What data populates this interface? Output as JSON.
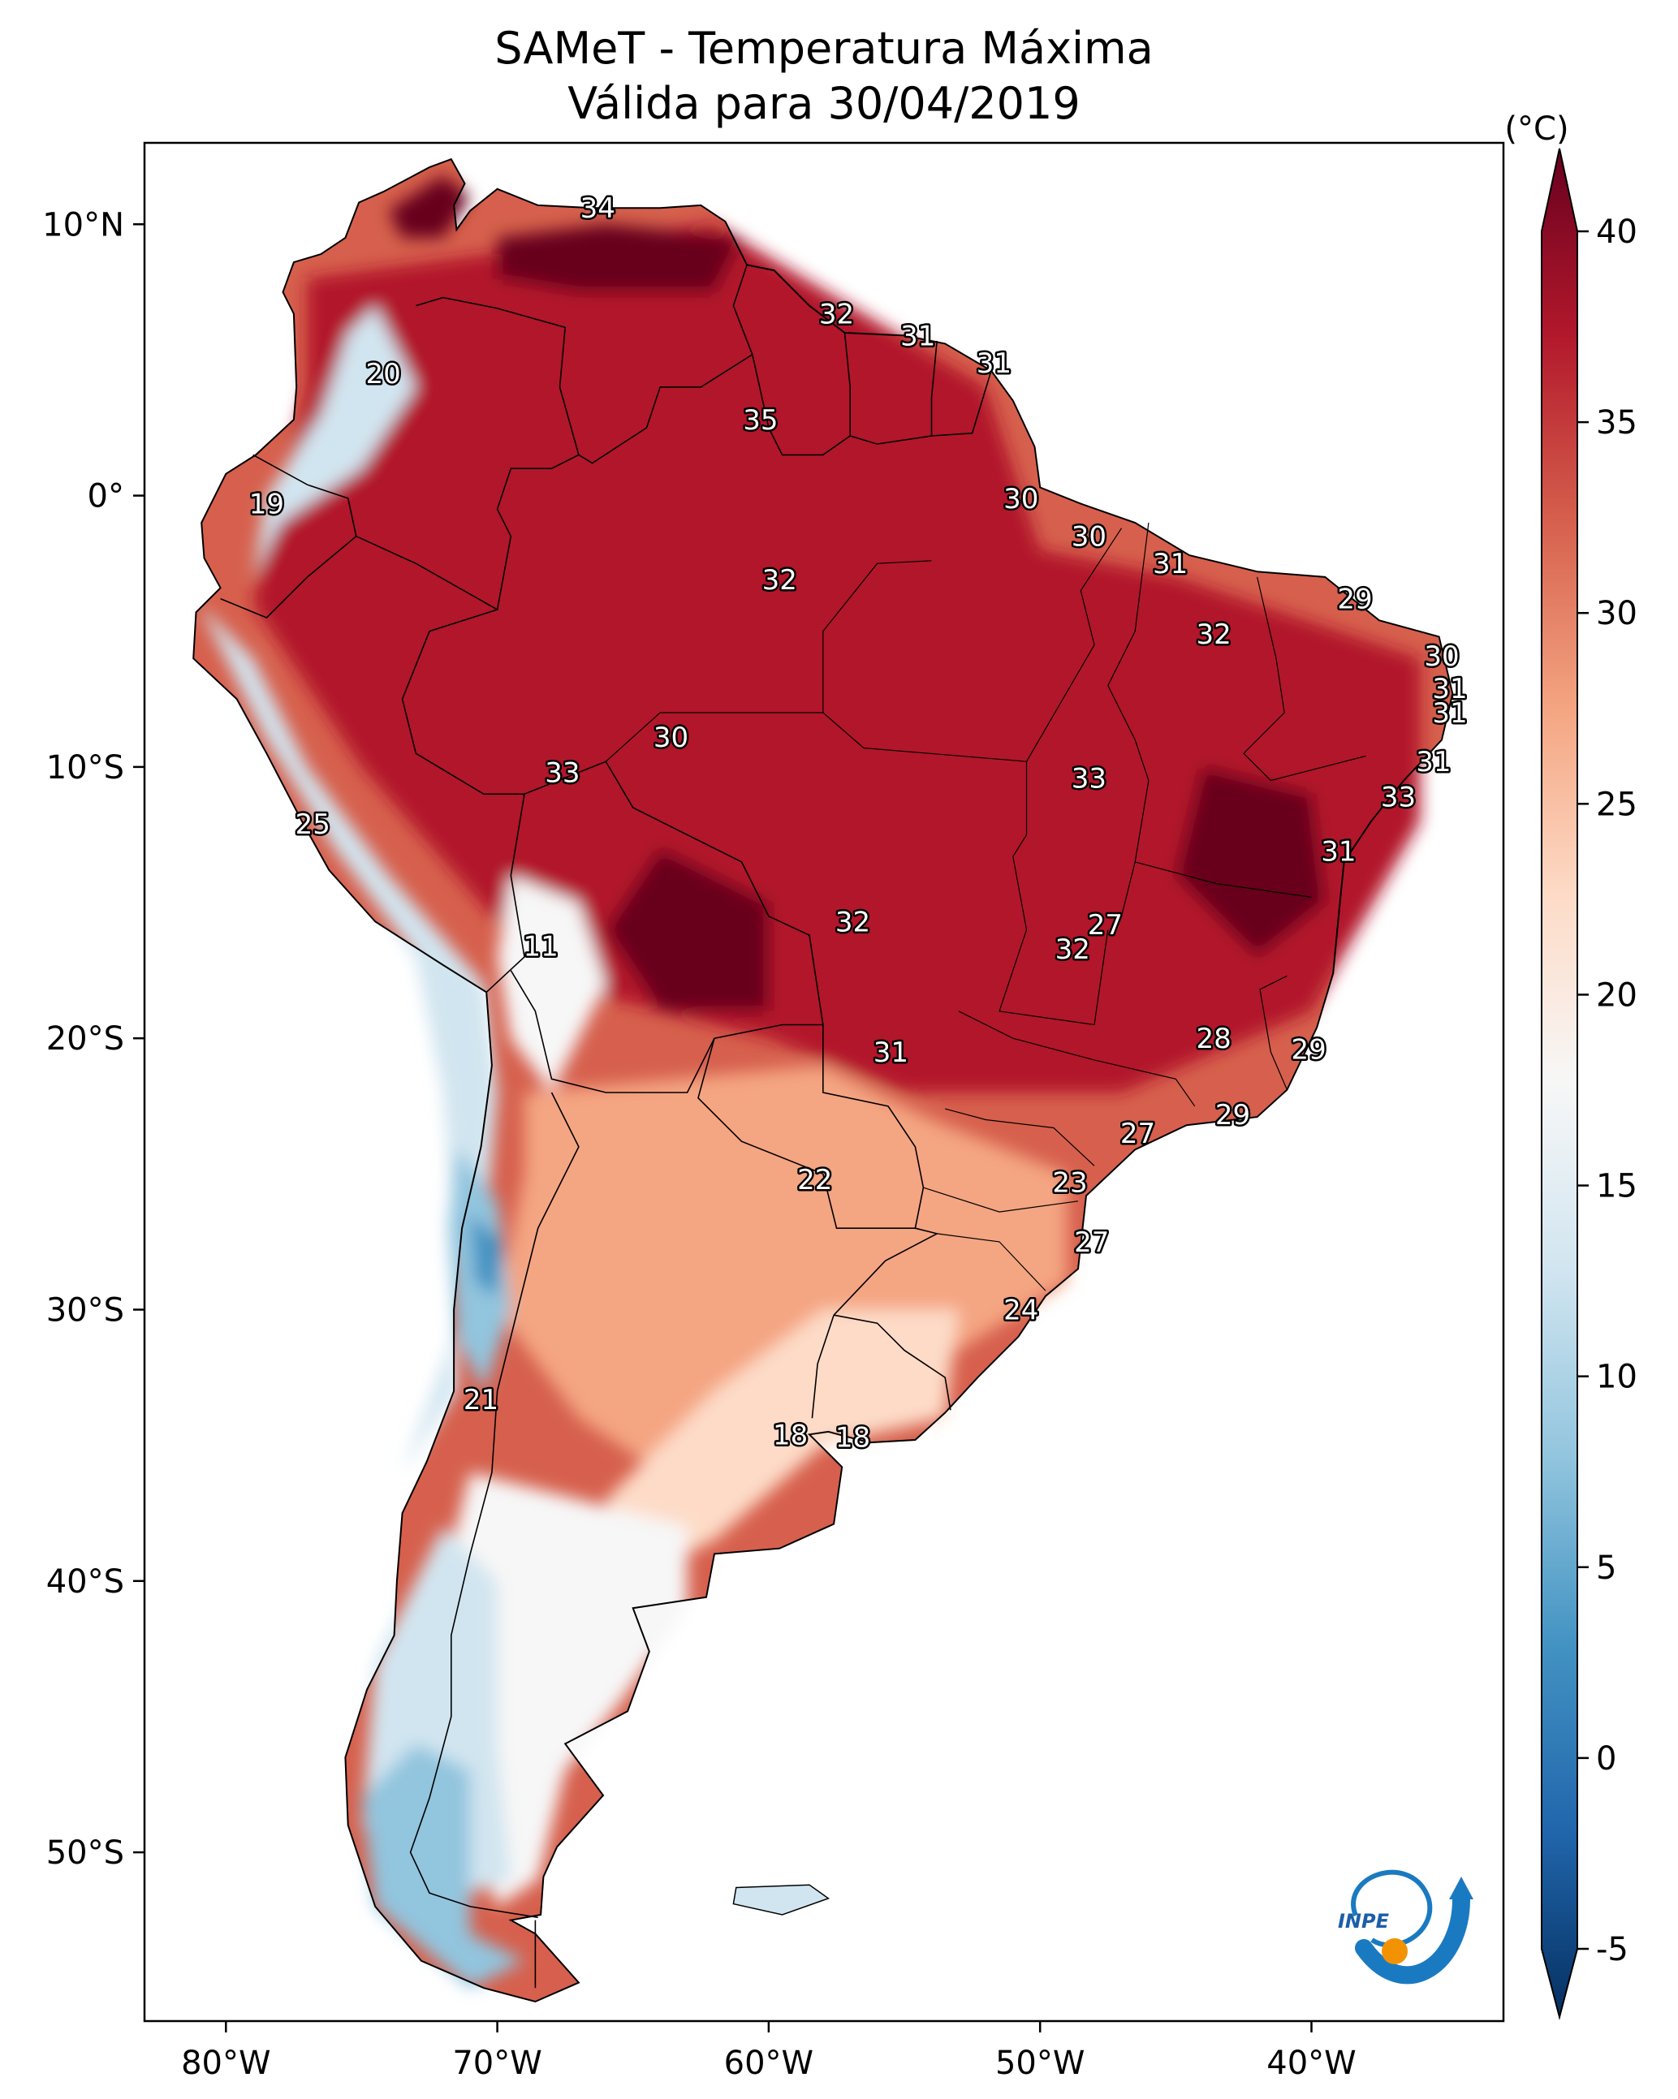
{
  "title": {
    "line1": "SAMeT - Temperatura Máxima",
    "line2": "Válida para 30/04/2019"
  },
  "map": {
    "lon_ticks": [
      "80°W",
      "70°W",
      "60°W",
      "50°W",
      "40°W"
    ],
    "lat_ticks": [
      "10°N",
      "0°",
      "10°S",
      "20°S",
      "30°S",
      "40°S",
      "50°S"
    ],
    "labels": [
      {
        "text": "34",
        "lon": -66.3,
        "lat": 10.6
      },
      {
        "text": "32",
        "lon": -57.5,
        "lat": 6.7
      },
      {
        "text": "31",
        "lon": -54.5,
        "lat": 5.9
      },
      {
        "text": "31",
        "lon": -51.7,
        "lat": 4.9
      },
      {
        "text": "20",
        "lon": -74.2,
        "lat": 4.5
      },
      {
        "text": "35",
        "lon": -60.3,
        "lat": 2.8
      },
      {
        "text": "19",
        "lon": -78.5,
        "lat": -0.3
      },
      {
        "text": "30",
        "lon": -50.7,
        "lat": -0.1
      },
      {
        "text": "30",
        "lon": -48.2,
        "lat": -1.5
      },
      {
        "text": "31",
        "lon": -45.2,
        "lat": -2.5
      },
      {
        "text": "32",
        "lon": -59.6,
        "lat": -3.1
      },
      {
        "text": "29",
        "lon": -38.4,
        "lat": -3.8
      },
      {
        "text": "32",
        "lon": -43.6,
        "lat": -5.1
      },
      {
        "text": "30",
        "lon": -35.2,
        "lat": -5.9
      },
      {
        "text": "31",
        "lon": -34.9,
        "lat": -7.1
      },
      {
        "text": "31",
        "lon": -34.9,
        "lat": -8.0
      },
      {
        "text": "30",
        "lon": -63.6,
        "lat": -8.9
      },
      {
        "text": "31",
        "lon": -35.5,
        "lat": -9.8
      },
      {
        "text": "33",
        "lon": -67.6,
        "lat": -10.2
      },
      {
        "text": "33",
        "lon": -48.2,
        "lat": -10.4
      },
      {
        "text": "33",
        "lon": -36.8,
        "lat": -11.1
      },
      {
        "text": "25",
        "lon": -76.8,
        "lat": -12.1
      },
      {
        "text": "31",
        "lon": -39.0,
        "lat": -13.1
      },
      {
        "text": "32",
        "lon": -56.9,
        "lat": -15.7
      },
      {
        "text": "27",
        "lon": -47.6,
        "lat": -15.8
      },
      {
        "text": "11",
        "lon": -68.4,
        "lat": -16.6
      },
      {
        "text": "32",
        "lon": -48.8,
        "lat": -16.7
      },
      {
        "text": "28",
        "lon": -43.6,
        "lat": -20.0
      },
      {
        "text": "29",
        "lon": -40.1,
        "lat": -20.4
      },
      {
        "text": "31",
        "lon": -55.5,
        "lat": -20.5
      },
      {
        "text": "29",
        "lon": -42.9,
        "lat": -22.8
      },
      {
        "text": "27",
        "lon": -46.4,
        "lat": -23.5
      },
      {
        "text": "22",
        "lon": -58.3,
        "lat": -25.2
      },
      {
        "text": "23",
        "lon": -48.9,
        "lat": -25.3
      },
      {
        "text": "27",
        "lon": -48.1,
        "lat": -27.5
      },
      {
        "text": "24",
        "lon": -50.7,
        "lat": -30.0
      },
      {
        "text": "21",
        "lon": -70.6,
        "lat": -33.3
      },
      {
        "text": "18",
        "lon": -59.2,
        "lat": -34.6
      },
      {
        "text": "18",
        "lon": -56.9,
        "lat": -34.7
      }
    ]
  },
  "colorbar": {
    "unit": "(°C)",
    "ticks": [
      "40",
      "35",
      "30",
      "25",
      "20",
      "15",
      "10",
      "5",
      "0",
      "-5"
    ]
  },
  "logo": {
    "text": "INPE"
  },
  "colors": {
    "dark_red": "#67001f",
    "red": "#b2182b",
    "mid_red": "#d6604d",
    "salmon": "#f4a582",
    "light_pink": "#fddbc7",
    "white": "#f7f7f7",
    "light_blue": "#d1e5f0",
    "sky_blue": "#92c5de",
    "blue": "#4393c3",
    "mid_blue": "#2166ac",
    "dark_blue": "#053061",
    "logo_blue": "#1a7ac1",
    "logo_orange": "#f39200"
  }
}
